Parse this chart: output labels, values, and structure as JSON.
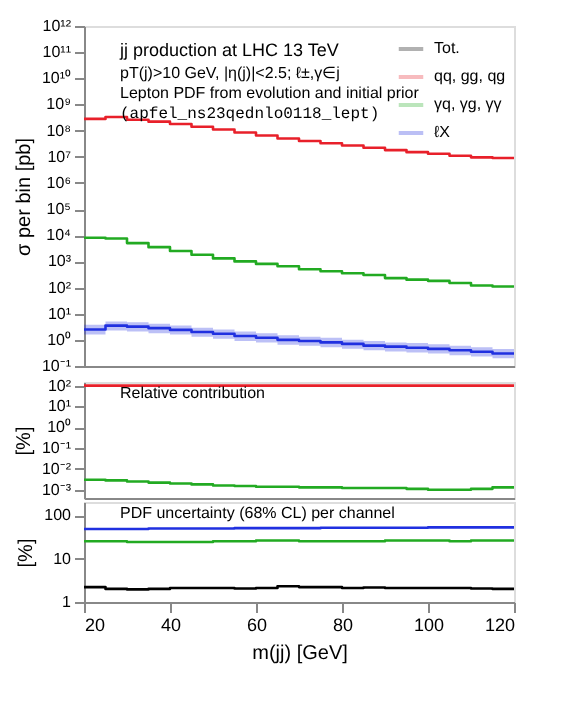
{
  "chart_data": [
    {
      "type": "step",
      "ylabel": "σ per bin [pb]",
      "annotations": [
        "jj production at LHC 13 TeV",
        "pT(j)>10 GeV, |η(j)|<2.5; ℓ±,γ∈j",
        "Lepton PDF from evolution and initial prior",
        "(apfel_ns23qednlo0118_lept)"
      ],
      "x": [
        20,
        25,
        30,
        35,
        40,
        45,
        50,
        55,
        60,
        65,
        70,
        75,
        80,
        85,
        90,
        95,
        100,
        105,
        110,
        115,
        120
      ],
      "series": [
        {
          "name": "Tot.",
          "color": "#000000",
          "values": [
            null,
            null,
            null,
            null,
            null,
            null,
            null,
            null,
            null,
            null,
            null,
            null,
            null,
            null,
            null,
            null,
            null,
            null,
            null,
            null,
            null
          ]
        },
        {
          "name": "qq, gg, qg",
          "color": "#e8202a",
          "values": [
            280000000,
            330000000,
            260000000,
            220000000,
            180000000,
            140000000,
            110000000,
            85000000,
            65000000,
            50000000,
            40000000,
            33000000,
            27000000,
            22000000,
            18000000,
            15000000,
            13000000,
            11000000,
            9500000,
            9000000,
            9000000
          ]
        },
        {
          "name": "γq, γg, γγ",
          "color": "#22aa22",
          "values": [
            8000,
            7500,
            5000,
            3500,
            2500,
            1800,
            1300,
            1000,
            800,
            650,
            500,
            420,
            350,
            300,
            230,
            200,
            180,
            150,
            120,
            110,
            110
          ]
        },
        {
          "name": "ℓX",
          "color": "#2030e0",
          "values": [
            2.5,
            3.5,
            3.2,
            2.8,
            2.4,
            2,
            1.7,
            1.4,
            1.2,
            1,
            0.9,
            0.8,
            0.7,
            0.6,
            0.55,
            0.5,
            0.45,
            0.4,
            0.35,
            0.3,
            0.3
          ],
          "lower": [
            1.6,
            2.3,
            2.1,
            1.8,
            1.6,
            1.3,
            1.1,
            0.9,
            0.8,
            0.65,
            0.6,
            0.52,
            0.46,
            0.4,
            0.36,
            0.33,
            0.3,
            0.26,
            0.23,
            0.2,
            0.2
          ],
          "upper": [
            3.8,
            5,
            4.7,
            4.1,
            3.5,
            2.9,
            2.5,
            2.1,
            1.8,
            1.5,
            1.3,
            1.2,
            1,
            0.9,
            0.8,
            0.75,
            0.68,
            0.6,
            0.52,
            0.45,
            0.45
          ]
        }
      ],
      "xlim": [
        20,
        120
      ],
      "ylim": [
        0.1,
        1000000000000
      ],
      "log": "y",
      "yticks": [
        {
          "value": 0.1,
          "label": "10⁻¹"
        },
        {
          "value": 1,
          "label": "10⁰"
        },
        {
          "value": 10,
          "label": "10¹"
        },
        {
          "value": 100,
          "label": "10²"
        },
        {
          "value": 1000,
          "label": "10³"
        },
        {
          "value": 10000,
          "label": "10⁴"
        },
        {
          "value": 100000,
          "label": "10⁵"
        },
        {
          "value": 1000000,
          "label": "10⁶"
        },
        {
          "value": 10000000,
          "label": "10⁷"
        },
        {
          "value": 100000000,
          "label": "10⁸"
        },
        {
          "value": 1000000000,
          "label": "10⁹"
        },
        {
          "value": 10000000000,
          "label": "10¹⁰"
        },
        {
          "value": 100000000000,
          "label": "10¹¹"
        },
        {
          "value": 1000000000000,
          "label": "10¹²"
        }
      ],
      "tick_labels": "y",
      "legend": "top right",
      "grid": false
    },
    {
      "type": "step",
      "ylabel": "[%]",
      "annotations": [
        "Relative contribution"
      ],
      "x": [
        20,
        25,
        30,
        35,
        40,
        45,
        50,
        55,
        60,
        65,
        70,
        75,
        80,
        85,
        90,
        95,
        100,
        105,
        110,
        115,
        120
      ],
      "series": [
        {
          "color": "#e8202a",
          "values": [
            100,
            100,
            100,
            100,
            100,
            100,
            100,
            100,
            100,
            100,
            100,
            100,
            100,
            100,
            100,
            100,
            100,
            100,
            100,
            100,
            100
          ]
        },
        {
          "color": "#22aa22",
          "values": [
            0.003,
            0.0028,
            0.0025,
            0.0022,
            0.002,
            0.0018,
            0.0016,
            0.0015,
            0.0014,
            0.0014,
            0.0013,
            0.0013,
            0.0012,
            0.0012,
            0.0012,
            0.0011,
            0.001,
            0.001,
            0.0011,
            0.0013,
            0.0013
          ]
        }
      ],
      "xlim": [
        20,
        120
      ],
      "ylim": [
        0.0004,
        150
      ],
      "log": "y",
      "yticks": [
        {
          "value": 0.001,
          "label": "10⁻³"
        },
        {
          "value": 0.01,
          "label": "10⁻²"
        },
        {
          "value": 0.1,
          "label": "10⁻¹"
        },
        {
          "value": 1,
          "label": "10⁰"
        },
        {
          "value": 10,
          "label": "10¹"
        },
        {
          "value": 100,
          "label": "10²"
        }
      ],
      "tick_labels": "y",
      "grid": false
    },
    {
      "type": "step",
      "ylabel": "[%]",
      "xlabel": "m(jj) [GeV]",
      "annotations": [
        "PDF uncertainty (68% CL) per channel"
      ],
      "x": [
        20,
        25,
        30,
        35,
        40,
        45,
        50,
        55,
        60,
        65,
        70,
        75,
        80,
        85,
        90,
        95,
        100,
        105,
        110,
        115,
        120
      ],
      "series": [
        {
          "color": "#000000",
          "values": [
            2.2,
            2,
            1.95,
            2,
            2.1,
            2.1,
            2.1,
            2.05,
            2.1,
            2.3,
            2.2,
            2.2,
            2.1,
            2.15,
            2.1,
            2.1,
            2.1,
            2.1,
            2.05,
            2,
            2
          ]
        },
        {
          "color": "#22aa22",
          "values": [
            25,
            25,
            24,
            24,
            24,
            24,
            25,
            25,
            26,
            26,
            25,
            25,
            25,
            25,
            26,
            26,
            26,
            25,
            26,
            26,
            26
          ]
        },
        {
          "color": "#2030e0",
          "values": [
            48,
            48,
            48,
            49,
            49,
            49,
            49,
            50,
            50,
            50,
            50,
            51,
            51,
            51,
            51,
            51,
            52,
            52,
            52,
            52,
            52
          ]
        }
      ],
      "xlim": [
        20,
        120
      ],
      "ylim": [
        1,
        200
      ],
      "log": "y",
      "xticks": [
        20,
        40,
        60,
        80,
        100,
        120
      ],
      "yticks": [
        1,
        10,
        100
      ],
      "grid": false
    }
  ]
}
